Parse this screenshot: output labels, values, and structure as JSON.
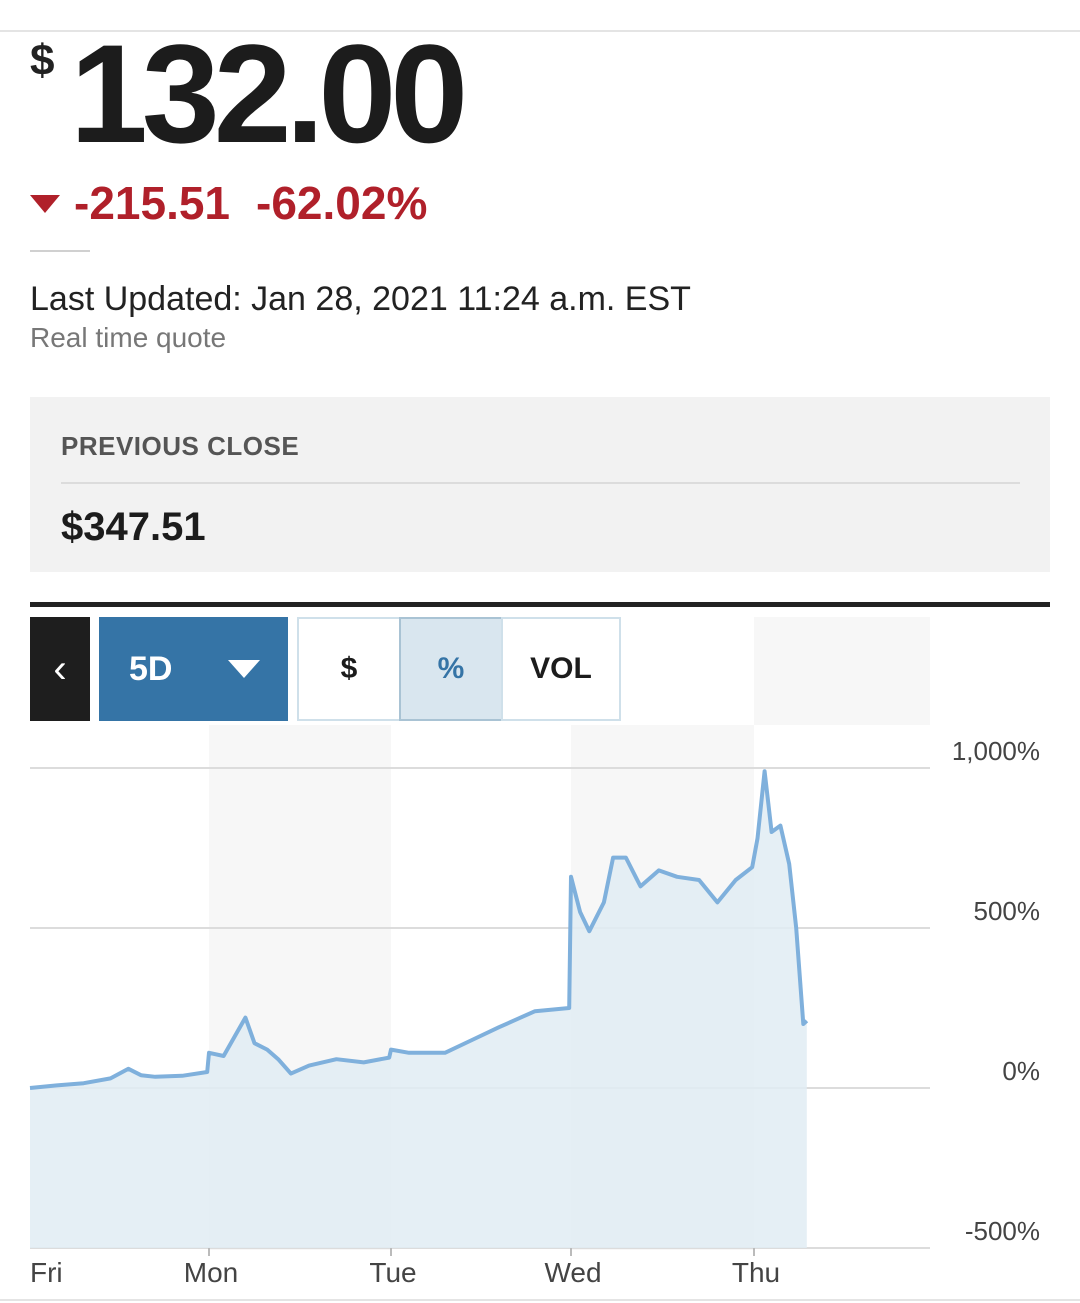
{
  "quote": {
    "currency_symbol": "$",
    "price": "132.00",
    "change": "-215.51",
    "change_pct": "-62.02%",
    "last_updated": "Last Updated: Jan 28, 2021 11:24 a.m. EST",
    "quote_type": "Real time quote"
  },
  "previous_close": {
    "label": "PREVIOUS CLOSE",
    "value": "$347.51"
  },
  "controls": {
    "back_symbol": "‹",
    "range": "5D",
    "modes": [
      {
        "label": "$",
        "selected": false
      },
      {
        "label": "%",
        "selected": true
      },
      {
        "label": "VOL",
        "selected": false
      }
    ]
  },
  "colors": {
    "accent": "#3574a6",
    "negative": "#b0202a",
    "line": "#7fb0dc",
    "area": "#e1ecf3"
  },
  "chart_data": {
    "type": "area",
    "title": "",
    "xlabel": "",
    "ylabel": "",
    "x_ticks": [
      "Fri",
      "Mon",
      "Tue",
      "Wed",
      "Thu"
    ],
    "y_ticks": [
      "1,000%",
      "500%",
      "0%",
      "-500%"
    ],
    "ylim": [
      -500,
      1000
    ],
    "grid": true,
    "series": [
      {
        "points": [
          [
            0,
            0
          ],
          [
            0.15,
            8
          ],
          [
            0.3,
            15
          ],
          [
            0.45,
            30
          ],
          [
            0.55,
            60
          ],
          [
            0.62,
            40
          ],
          [
            0.7,
            35
          ],
          [
            0.85,
            38
          ],
          [
            0.99,
            50
          ],
          [
            1.0,
            110
          ],
          [
            1.08,
            100
          ],
          [
            1.15,
            170
          ],
          [
            1.2,
            220
          ],
          [
            1.25,
            140
          ],
          [
            1.32,
            120
          ],
          [
            1.38,
            90
          ],
          [
            1.45,
            45
          ],
          [
            1.55,
            70
          ],
          [
            1.7,
            90
          ],
          [
            1.85,
            80
          ],
          [
            1.99,
            95
          ],
          [
            2.0,
            120
          ],
          [
            2.1,
            110
          ],
          [
            2.3,
            110
          ],
          [
            2.45,
            150
          ],
          [
            2.6,
            190
          ],
          [
            2.72,
            220
          ],
          [
            2.8,
            240
          ],
          [
            2.99,
            250
          ],
          [
            3.0,
            660
          ],
          [
            3.05,
            550
          ],
          [
            3.1,
            490
          ],
          [
            3.18,
            580
          ],
          [
            3.23,
            720
          ],
          [
            3.3,
            720
          ],
          [
            3.38,
            630
          ],
          [
            3.48,
            680
          ],
          [
            3.58,
            660
          ],
          [
            3.7,
            650
          ],
          [
            3.8,
            580
          ],
          [
            3.9,
            650
          ],
          [
            3.99,
            690
          ],
          [
            4.02,
            780
          ],
          [
            4.06,
            990
          ],
          [
            4.1,
            800
          ],
          [
            4.15,
            820
          ],
          [
            4.2,
            700
          ],
          [
            4.24,
            500
          ],
          [
            4.28,
            200
          ],
          [
            4.3,
            210
          ]
        ]
      }
    ]
  }
}
